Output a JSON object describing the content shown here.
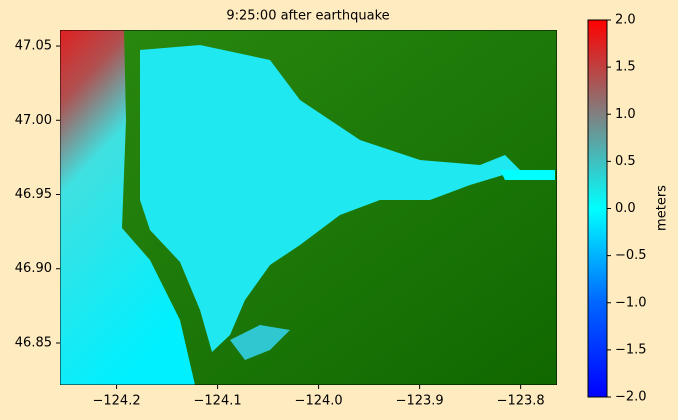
{
  "chart_data": {
    "type": "map",
    "title": "9:25:00 after earthquake",
    "xlim": [
      -124.256,
      -123.764
    ],
    "ylim": [
      46.8217,
      47.0608
    ],
    "xticks": [
      {
        "value": -124.2,
        "label": "−124.2"
      },
      {
        "value": -124.1,
        "label": "−124.1"
      },
      {
        "value": -124.0,
        "label": "−124.0"
      },
      {
        "value": -123.9,
        "label": "−123.9"
      },
      {
        "value": -123.8,
        "label": "−123.8"
      }
    ],
    "yticks": [
      46.85,
      {
        "value": 46.9,
        "label": "46.90"
      },
      46.95,
      {
        "value": 47.0,
        "label": "47.00"
      },
      47.05
    ],
    "colorbar": {
      "label": "meters",
      "clim": [
        -2,
        2
      ],
      "colors": [
        "#0000ff",
        "#0066ff",
        "#00ffff",
        "#808080",
        "#ff0000"
      ],
      "ticks": [
        {
          "value": -2,
          "label": "−2.0"
        },
        {
          "value": -1.5,
          "label": "−1.5"
        },
        {
          "value": -1,
          "label": "−1.0"
        },
        {
          "value": -0.5,
          "label": "−0.5"
        },
        {
          "value": 0,
          "label": "0.0"
        },
        {
          "value": 0.5,
          "label": "0.5"
        },
        {
          "value": 1,
          "label": "1.0"
        },
        {
          "value": 1.5,
          "label": "1.5"
        },
        {
          "value": 2,
          "label": "2.0"
        }
      ]
    }
  }
}
